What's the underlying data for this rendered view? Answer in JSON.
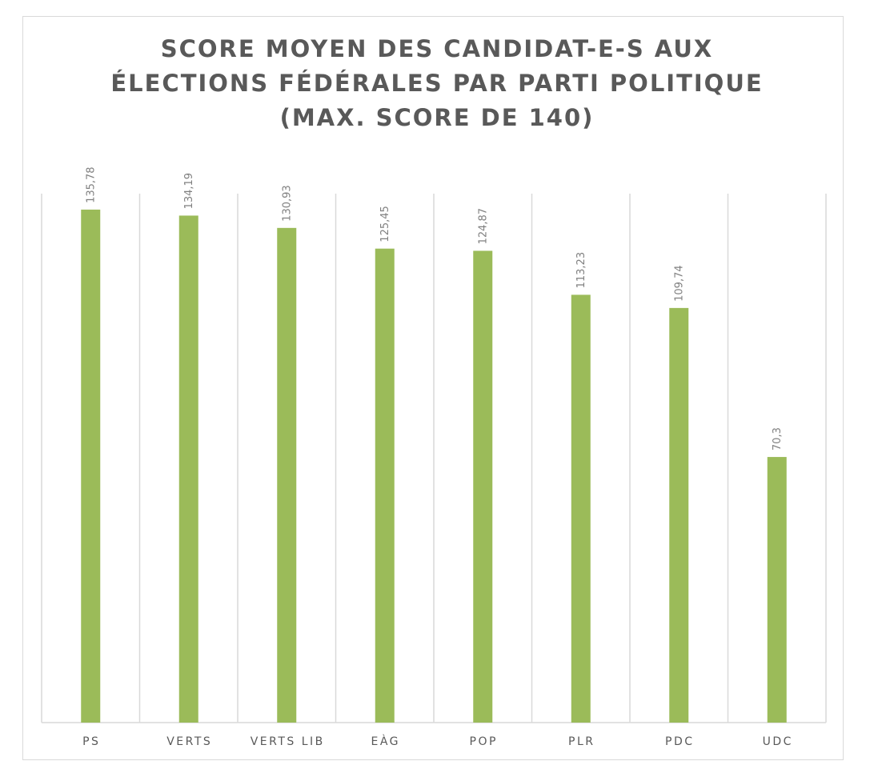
{
  "chart_data": {
    "type": "bar",
    "title_lines": [
      "SCORE MOYEN DES CANDIDAT-E-S AUX",
      "ÉLECTIONS FÉDÉRALES PAR PARTI POLITIQUE",
      "(MAX. SCORE DE 140)"
    ],
    "categories": [
      "PS",
      "VERTS",
      "VERTS LIB",
      "EÀG",
      "POP",
      "PLR",
      "PDC",
      "UDC"
    ],
    "values": [
      135.78,
      134.19,
      130.93,
      125.45,
      124.87,
      113.23,
      109.74,
      70.3
    ],
    "value_labels": [
      "135,78",
      "134,19",
      "130,93",
      "125,45",
      "124,87",
      "113,23",
      "109,74",
      "70,3"
    ],
    "ylim": [
      0,
      140
    ],
    "xlabel": "",
    "ylabel": "",
    "grid": "vertical-category-separators",
    "legend": "none",
    "bar_color": "#9bbb59",
    "grid_color": "#d9d9d9",
    "text_color": "#595959",
    "data_label_color": "#7f7f7f"
  }
}
